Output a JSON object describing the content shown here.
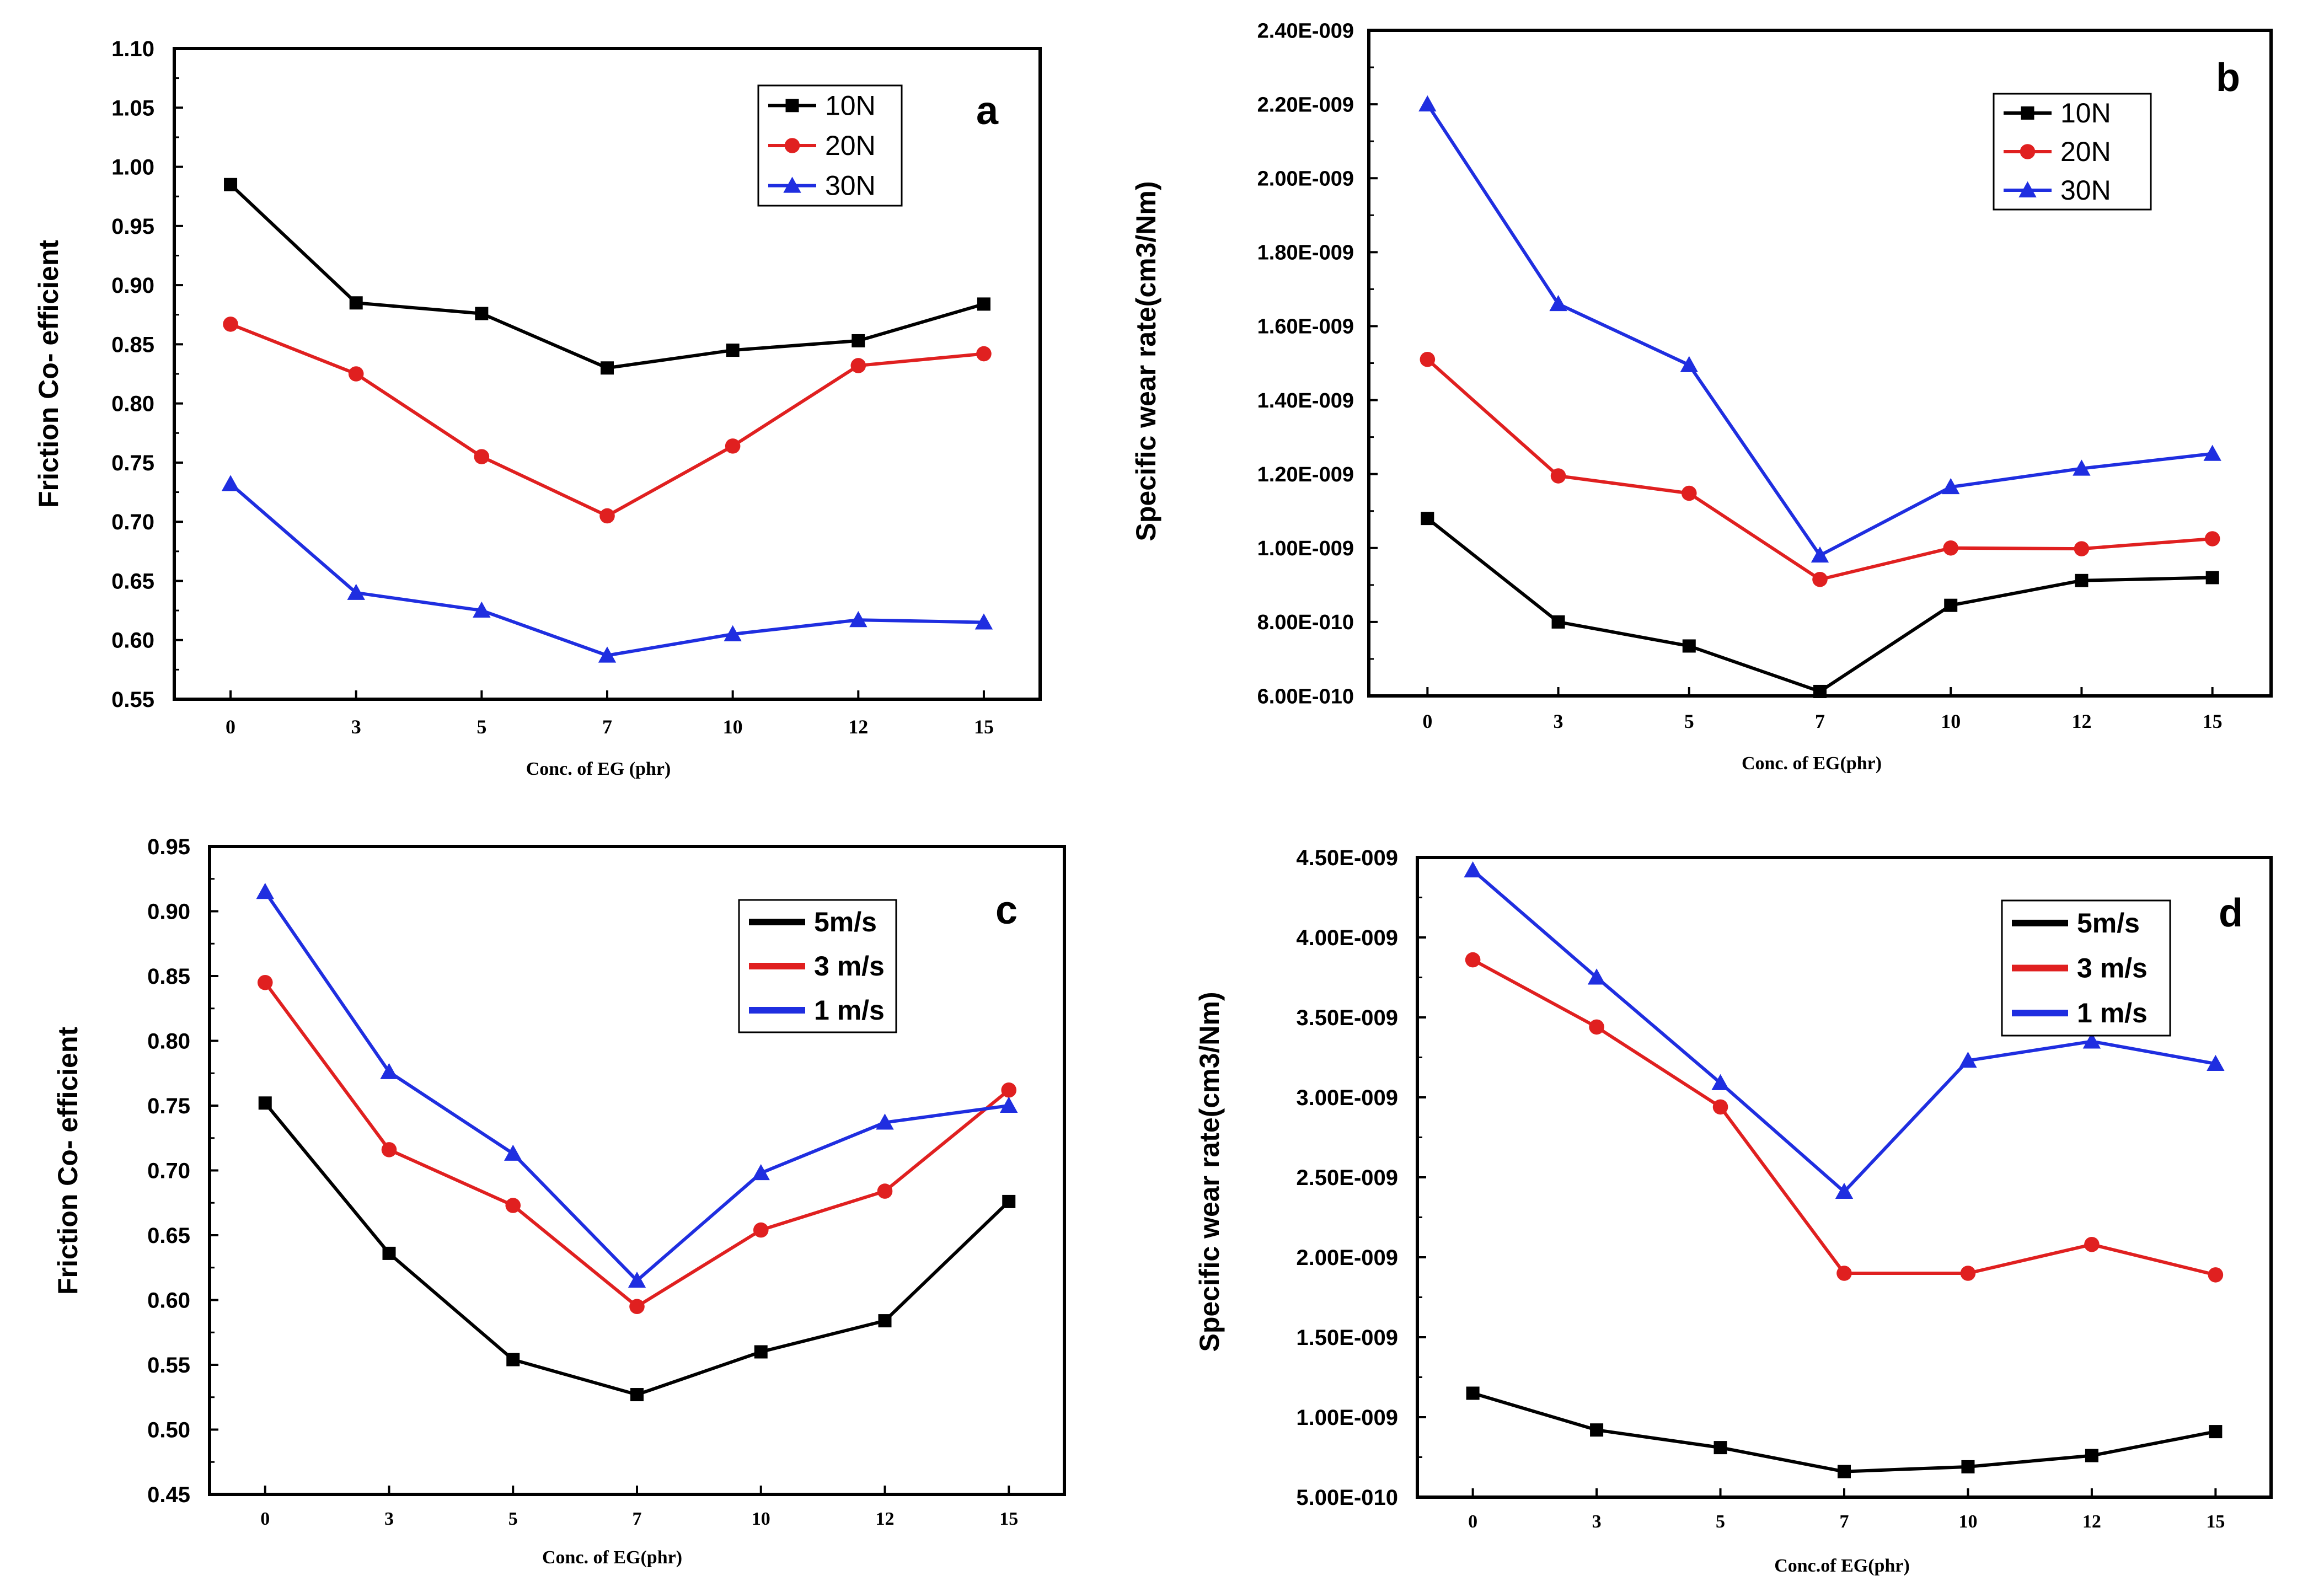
{
  "colors": {
    "black": "#000000",
    "red": "#e02020",
    "blue": "#1f2ee0"
  },
  "chart_data": [
    {
      "type": "line",
      "panel": "a",
      "xlabel": "Conc. of EG (phr)",
      "ylabel": "Friction Co- efficient",
      "categories": [
        "0",
        "3",
        "5",
        "7",
        "10",
        "12",
        "15"
      ],
      "ylim": [
        0.55,
        1.1
      ],
      "ystep": 0.05,
      "ytick_labels": [
        "0.55",
        "0.60",
        "0.65",
        "0.70",
        "0.75",
        "0.80",
        "0.85",
        "0.90",
        "0.95",
        "1.00",
        "1.05",
        "1.10"
      ],
      "legend_style": "marker",
      "series": [
        {
          "name": "10N",
          "color": "#000000",
          "marker": "square",
          "values": [
            0.985,
            0.885,
            0.876,
            0.83,
            0.845,
            0.853,
            0.884
          ]
        },
        {
          "name": "20N",
          "color": "#e02020",
          "marker": "circle",
          "values": [
            0.867,
            0.825,
            0.755,
            0.705,
            0.764,
            0.832,
            0.842
          ]
        },
        {
          "name": "30N",
          "color": "#1f2ee0",
          "marker": "triangle",
          "values": [
            0.732,
            0.64,
            0.625,
            0.587,
            0.605,
            0.617,
            0.615
          ]
        }
      ]
    },
    {
      "type": "line",
      "panel": "b",
      "xlabel": "Conc. of EG(phr)",
      "ylabel": "Specific wear rate(cm3/Nm)",
      "categories": [
        "0",
        "3",
        "5",
        "7",
        "10",
        "12",
        "15"
      ],
      "ylim": [
        6e-10,
        2.4e-09
      ],
      "ystep": 2e-10,
      "ytick_labels": [
        "6.00E-010",
        "8.00E-010",
        "1.00E-009",
        "1.20E-009",
        "1.40E-009",
        "1.60E-009",
        "1.80E-009",
        "2.00E-009",
        "2.20E-009",
        "2.40E-009"
      ],
      "legend_style": "marker",
      "series": [
        {
          "name": "10N",
          "color": "#000000",
          "marker": "square",
          "values": [
            1.08e-09,
            8e-10,
            7.35e-10,
            6.12e-10,
            8.45e-10,
            9.12e-10,
            9.2e-10
          ]
        },
        {
          "name": "20N",
          "color": "#e02020",
          "marker": "circle",
          "values": [
            1.51e-09,
            1.195e-09,
            1.148e-09,
            9.15e-10,
            1e-09,
            9.98e-10,
            1.025e-09
          ]
        },
        {
          "name": "30N",
          "color": "#1f2ee0",
          "marker": "triangle",
          "values": [
            2.2e-09,
            1.66e-09,
            1.495e-09,
            9.8e-10,
            1.165e-09,
            1.215e-09,
            1.255e-09
          ]
        }
      ]
    },
    {
      "type": "line",
      "panel": "c",
      "xlabel": "Conc. of EG(phr)",
      "ylabel": "Friction Co- efficient",
      "categories": [
        "0",
        "3",
        "5",
        "7",
        "10",
        "12",
        "15"
      ],
      "ylim": [
        0.45,
        0.95
      ],
      "ystep": 0.05,
      "ytick_labels": [
        "0.45",
        "0.50",
        "0.55",
        "0.60",
        "0.65",
        "0.70",
        "0.75",
        "0.80",
        "0.85",
        "0.90",
        "0.95"
      ],
      "legend_style": "line",
      "series": [
        {
          "name": "5m/s",
          "color": "#000000",
          "marker": "square",
          "values": [
            0.752,
            0.636,
            0.554,
            0.527,
            0.56,
            0.584,
            0.676
          ]
        },
        {
          "name": "3 m/s",
          "color": "#e02020",
          "marker": "circle",
          "values": [
            0.845,
            0.716,
            0.673,
            0.595,
            0.654,
            0.684,
            0.762
          ]
        },
        {
          "name": "1 m/s",
          "color": "#1f2ee0",
          "marker": "triangle",
          "values": [
            0.915,
            0.776,
            0.713,
            0.615,
            0.698,
            0.737,
            0.75
          ]
        }
      ]
    },
    {
      "type": "line",
      "panel": "d",
      "xlabel": "Conc.of EG(phr)",
      "ylabel": "Specific wear rate(cm3/Nm)",
      "categories": [
        "0",
        "3",
        "5",
        "7",
        "10",
        "12",
        "15"
      ],
      "ylim": [
        5e-10,
        4.5e-09
      ],
      "ystep": 5e-10,
      "ytick_labels": [
        "5.00E-010",
        "1.00E-009",
        "1.50E-009",
        "2.00E-009",
        "2.50E-009",
        "3.00E-009",
        "3.50E-009",
        "4.00E-009",
        "4.50E-009"
      ],
      "legend_style": "line",
      "series": [
        {
          "name": "5m/s",
          "color": "#000000",
          "marker": "square",
          "values": [
            1.15e-09,
            9.2e-10,
            8.1e-10,
            6.6e-10,
            6.9e-10,
            7.6e-10,
            9.1e-10
          ]
        },
        {
          "name": "3 m/s",
          "color": "#e02020",
          "marker": "circle",
          "values": [
            3.86e-09,
            3.44e-09,
            2.94e-09,
            1.9e-09,
            1.9e-09,
            2.08e-09,
            1.89e-09
          ]
        },
        {
          "name": "1 m/s",
          "color": "#1f2ee0",
          "marker": "triangle",
          "values": [
            4.42e-09,
            3.75e-09,
            3.09e-09,
            2.41e-09,
            3.23e-09,
            3.35e-09,
            3.21e-09
          ]
        }
      ]
    }
  ]
}
